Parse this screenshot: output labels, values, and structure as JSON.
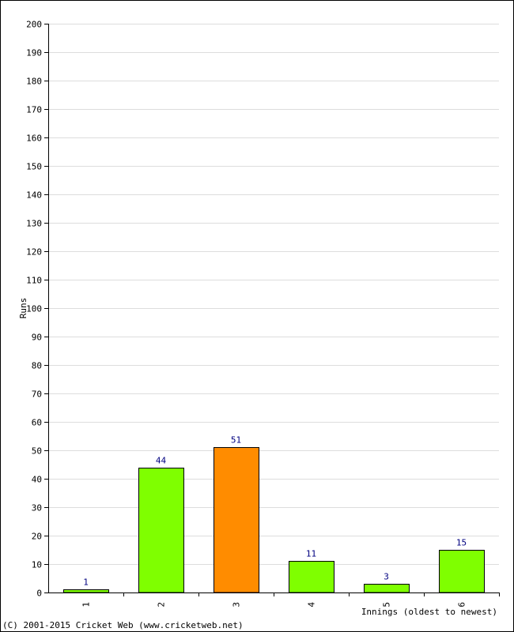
{
  "chart_data": {
    "type": "bar",
    "categories": [
      "1",
      "2",
      "3",
      "4",
      "5",
      "6"
    ],
    "values": [
      1,
      44,
      51,
      11,
      3,
      15
    ],
    "bar_colors": [
      "#7fff00",
      "#7fff00",
      "#ff8c00",
      "#7fff00",
      "#7fff00",
      "#7fff00"
    ],
    "title": "",
    "xlabel": "Innings (oldest to newest)",
    "ylabel": "Runs",
    "ylim": [
      0,
      200
    ],
    "ytick_step": 10,
    "grid": true,
    "data_labels": true,
    "legend": "none"
  },
  "footer": {
    "copyright": "(C) 2001-2015 Cricket Web (www.cricketweb.net)"
  },
  "colors": {
    "grid": "#dddddd",
    "axis": "#000000",
    "bar_outline": "#000000",
    "data_label": "#000080"
  }
}
